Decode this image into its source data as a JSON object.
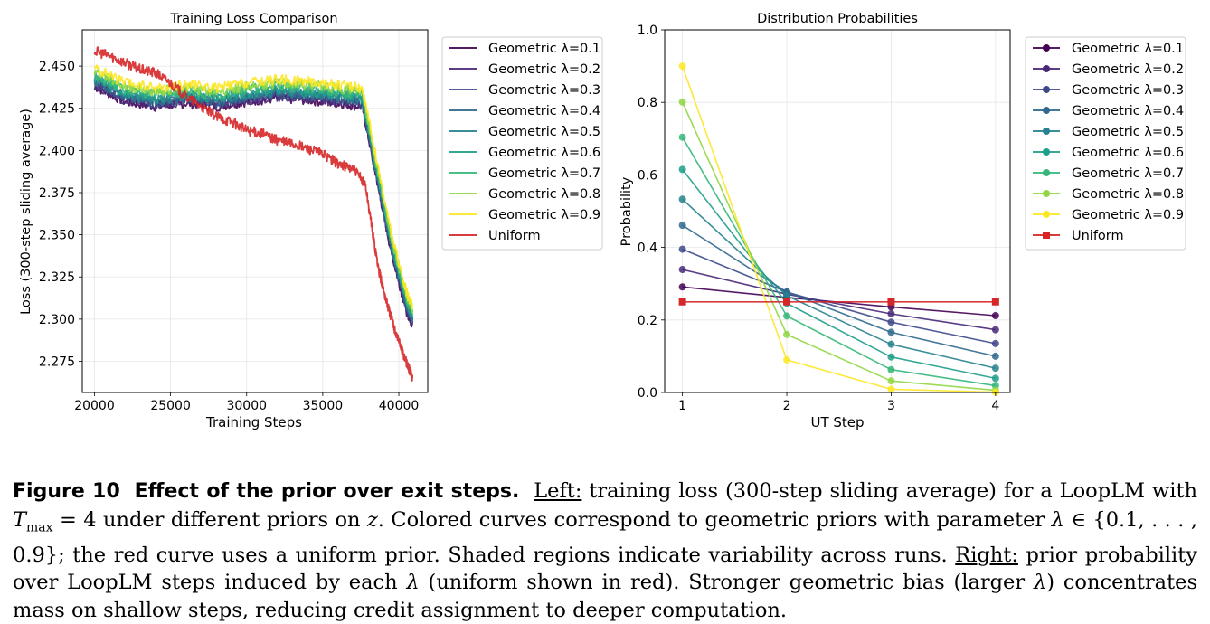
{
  "left_chart": {
    "chart_data": {
      "type": "line",
      "title": "Training Loss Comparison",
      "xlabel": "Training Steps",
      "ylabel": "Loss (300-step sliding average)",
      "xlim": [
        19200,
        41900
      ],
      "ylim": [
        2.2565,
        2.4715
      ],
      "xticks": [
        20000,
        25000,
        30000,
        35000,
        40000
      ],
      "yticks": [
        2.275,
        2.3,
        2.325,
        2.35,
        2.375,
        2.4,
        2.425,
        2.45
      ],
      "xtick_labels": [
        "20000",
        "25000",
        "30000",
        "35000",
        "40000"
      ],
      "ytick_labels": [
        "2.275",
        "2.300",
        "2.325",
        "2.350",
        "2.375",
        "2.400",
        "2.425",
        "2.450"
      ],
      "grid": true,
      "legend_position": "outside-right",
      "series": [
        {
          "name": "Geometric λ=0.1",
          "color": "#440154",
          "x": [
            20000,
            22000,
            24000,
            26000,
            28000,
            30000,
            32000,
            34000,
            36000,
            37600,
            38500,
            39500,
            40500,
            40900
          ],
          "y": [
            2.438,
            2.429,
            2.426,
            2.428,
            2.426,
            2.429,
            2.431,
            2.43,
            2.428,
            2.426,
            2.385,
            2.34,
            2.305,
            2.297
          ]
        },
        {
          "name": "Geometric λ=0.2",
          "color": "#482878",
          "x": [
            20000,
            22000,
            24000,
            26000,
            28000,
            30000,
            32000,
            34000,
            36000,
            37600,
            38500,
            39500,
            40500,
            40900
          ],
          "y": [
            2.439,
            2.43,
            2.427,
            2.429,
            2.427,
            2.43,
            2.432,
            2.431,
            2.429,
            2.427,
            2.386,
            2.341,
            2.306,
            2.298
          ]
        },
        {
          "name": "Geometric λ=0.3",
          "color": "#3e4989",
          "x": [
            20000,
            22000,
            24000,
            26000,
            28000,
            30000,
            32000,
            34000,
            36000,
            37600,
            38500,
            39500,
            40500,
            40900
          ],
          "y": [
            2.44,
            2.431,
            2.428,
            2.43,
            2.428,
            2.431,
            2.433,
            2.432,
            2.43,
            2.428,
            2.387,
            2.342,
            2.307,
            2.299
          ]
        },
        {
          "name": "Geometric λ=0.4",
          "color": "#31688e",
          "x": [
            20000,
            22000,
            24000,
            26000,
            28000,
            30000,
            32000,
            34000,
            36000,
            37600,
            38500,
            39500,
            40500,
            40900
          ],
          "y": [
            2.441,
            2.432,
            2.429,
            2.431,
            2.429,
            2.432,
            2.434,
            2.433,
            2.431,
            2.429,
            2.388,
            2.343,
            2.308,
            2.3
          ]
        },
        {
          "name": "Geometric λ=0.5",
          "color": "#26828e",
          "x": [
            20000,
            22000,
            24000,
            26000,
            28000,
            30000,
            32000,
            34000,
            36000,
            37600,
            38500,
            39500,
            40500,
            40900
          ],
          "y": [
            2.442,
            2.433,
            2.43,
            2.432,
            2.43,
            2.433,
            2.435,
            2.434,
            2.432,
            2.43,
            2.389,
            2.344,
            2.309,
            2.301
          ]
        },
        {
          "name": "Geometric λ=0.6",
          "color": "#1f9e89",
          "x": [
            20000,
            22000,
            24000,
            26000,
            28000,
            30000,
            32000,
            34000,
            36000,
            37600,
            38500,
            39500,
            40500,
            40900
          ],
          "y": [
            2.443,
            2.434,
            2.431,
            2.433,
            2.431,
            2.434,
            2.436,
            2.435,
            2.433,
            2.431,
            2.39,
            2.345,
            2.31,
            2.302
          ]
        },
        {
          "name": "Geometric λ=0.7",
          "color": "#35b779",
          "x": [
            20000,
            22000,
            24000,
            26000,
            28000,
            30000,
            32000,
            34000,
            36000,
            37600,
            38500,
            39500,
            40500,
            40900
          ],
          "y": [
            2.445,
            2.436,
            2.433,
            2.435,
            2.433,
            2.436,
            2.438,
            2.437,
            2.435,
            2.433,
            2.392,
            2.347,
            2.312,
            2.304
          ]
        },
        {
          "name": "Geometric λ=0.8",
          "color": "#90d743",
          "x": [
            20000,
            22000,
            24000,
            26000,
            28000,
            30000,
            32000,
            34000,
            36000,
            37600,
            38500,
            39500,
            40500,
            40900
          ],
          "y": [
            2.447,
            2.438,
            2.435,
            2.437,
            2.435,
            2.438,
            2.44,
            2.439,
            2.437,
            2.435,
            2.394,
            2.349,
            2.314,
            2.306
          ]
        },
        {
          "name": "Geometric λ=0.9",
          "color": "#fde725",
          "x": [
            20000,
            22000,
            24000,
            26000,
            28000,
            30000,
            32000,
            34000,
            36000,
            37600,
            38500,
            39500,
            40500,
            40900
          ],
          "y": [
            2.449,
            2.44,
            2.437,
            2.439,
            2.437,
            2.44,
            2.442,
            2.441,
            2.439,
            2.437,
            2.396,
            2.351,
            2.316,
            2.308
          ]
        },
        {
          "name": "Uniform",
          "color": "#d62728",
          "x": [
            20000,
            21000,
            22000,
            23000,
            24000,
            25000,
            26000,
            27000,
            28000,
            29000,
            30000,
            31000,
            32000,
            33000,
            34000,
            35000,
            36000,
            37000,
            37800,
            38300,
            38700,
            39200,
            39700,
            40200,
            40600,
            40900
          ],
          "y": [
            2.459,
            2.456,
            2.452,
            2.448,
            2.446,
            2.44,
            2.432,
            2.426,
            2.42,
            2.417,
            2.412,
            2.41,
            2.406,
            2.404,
            2.401,
            2.398,
            2.392,
            2.389,
            2.38,
            2.35,
            2.328,
            2.31,
            2.295,
            2.282,
            2.272,
            2.265
          ]
        }
      ]
    }
  },
  "right_chart": {
    "chart_data": {
      "type": "line",
      "title": "Distribution Probabilities",
      "xlabel": "UT Step",
      "ylabel": "Probability",
      "xlim": [
        0.83,
        4.14
      ],
      "ylim": [
        0.0,
        1.0
      ],
      "xticks": [
        1,
        2,
        3,
        4
      ],
      "yticks": [
        0.0,
        0.2,
        0.4,
        0.6,
        0.8,
        1.0
      ],
      "xtick_labels": [
        "1",
        "2",
        "3",
        "4"
      ],
      "ytick_labels": [
        "0.0",
        "0.2",
        "0.4",
        "0.6",
        "0.8",
        "1.0"
      ],
      "grid": true,
      "legend_position": "outside-right",
      "categories": [
        1,
        2,
        3,
        4
      ],
      "series": [
        {
          "name": "Geometric λ=0.1",
          "color": "#440154",
          "marker": "circle",
          "values": [
            0.291,
            0.262,
            0.236,
            0.212
          ]
        },
        {
          "name": "Geometric λ=0.2",
          "color": "#482878",
          "marker": "circle",
          "values": [
            0.339,
            0.271,
            0.217,
            0.173
          ]
        },
        {
          "name": "Geometric λ=0.3",
          "color": "#3e4989",
          "marker": "circle",
          "values": [
            0.395,
            0.277,
            0.194,
            0.135
          ]
        },
        {
          "name": "Geometric λ=0.4",
          "color": "#31688e",
          "marker": "circle",
          "values": [
            0.461,
            0.277,
            0.166,
            0.1
          ]
        },
        {
          "name": "Geometric λ=0.5",
          "color": "#26828e",
          "marker": "circle",
          "values": [
            0.533,
            0.267,
            0.133,
            0.067
          ]
        },
        {
          "name": "Geometric λ=0.6",
          "color": "#1f9e89",
          "marker": "circle",
          "values": [
            0.615,
            0.246,
            0.098,
            0.039
          ]
        },
        {
          "name": "Geometric λ=0.7",
          "color": "#35b779",
          "marker": "circle",
          "values": [
            0.704,
            0.211,
            0.063,
            0.019
          ]
        },
        {
          "name": "Geometric λ=0.8",
          "color": "#90d743",
          "marker": "circle",
          "values": [
            0.801,
            0.16,
            0.032,
            0.006
          ]
        },
        {
          "name": "Geometric λ=0.9",
          "color": "#fde725",
          "marker": "circle",
          "values": [
            0.9,
            0.09,
            0.009,
            0.001
          ]
        },
        {
          "name": "Uniform",
          "color": "#d62728",
          "marker": "square",
          "values": [
            0.25,
            0.25,
            0.25,
            0.25
          ]
        }
      ]
    }
  },
  "caption": {
    "label": "Figure 10",
    "title": "Effect of the prior over exit steps.",
    "left_tag": "Left:",
    "text_1": " training loss (300-step sliding average) for a LoopLM with ",
    "tmax_symbol": "T",
    "tmax_sub": "max",
    "text_2": " = 4 under different priors on ",
    "z_symbol": "z",
    "text_3": ". Colored curves correspond to geometric priors with parameter ",
    "lambda_symbol": "λ",
    "text_4": " ∈ {0.1, . . . , 0.9}; the red curve uses a uniform prior. Shaded regions indicate variability across runs. ",
    "right_tag": "Right:",
    "text_5": " prior probability over LoopLM steps induced by each ",
    "text_6": " (uniform shown in red). Stronger geometric bias (larger ",
    "text_7": ") concentrates mass on shallow steps, reducing credit assignment to deeper computation."
  }
}
